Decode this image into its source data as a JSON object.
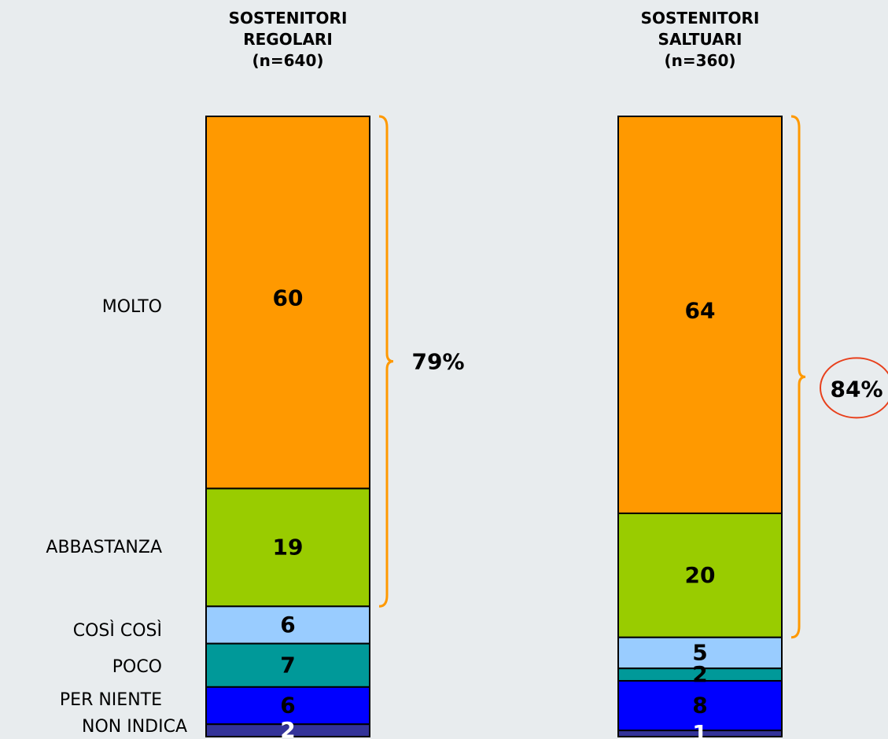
{
  "chart_data": {
    "type": "stacked-bar",
    "categories": [
      "MOLTO",
      "ABBASTANZA",
      "COSÌ COSÌ",
      "POCO",
      "PER NIENTE",
      "NON INDICA"
    ],
    "colors": [
      "#ff9900",
      "#99cc00",
      "#99ccff",
      "#009999",
      "#0000ff",
      "#333399"
    ],
    "series": [
      {
        "title": [
          "SOSTENITORI",
          "REGOLARI",
          "(n=640)"
        ],
        "values": [
          60,
          19,
          6,
          7,
          6,
          2
        ],
        "label_colors": [
          "#000000",
          "#000000",
          "#000000",
          "#000000",
          "#000000",
          "#ffffff"
        ],
        "bracket_total": "79%",
        "bracket_circled": false
      },
      {
        "title": [
          "SOSTENITORI",
          "SALTUARI",
          "(n=360)"
        ],
        "values": [
          64,
          20,
          5,
          2,
          8,
          1
        ],
        "label_colors": [
          "#000000",
          "#000000",
          "#000000",
          "#000000",
          "#000000",
          "#ffffff"
        ],
        "bracket_total": "84%",
        "bracket_circled": true
      }
    ]
  }
}
